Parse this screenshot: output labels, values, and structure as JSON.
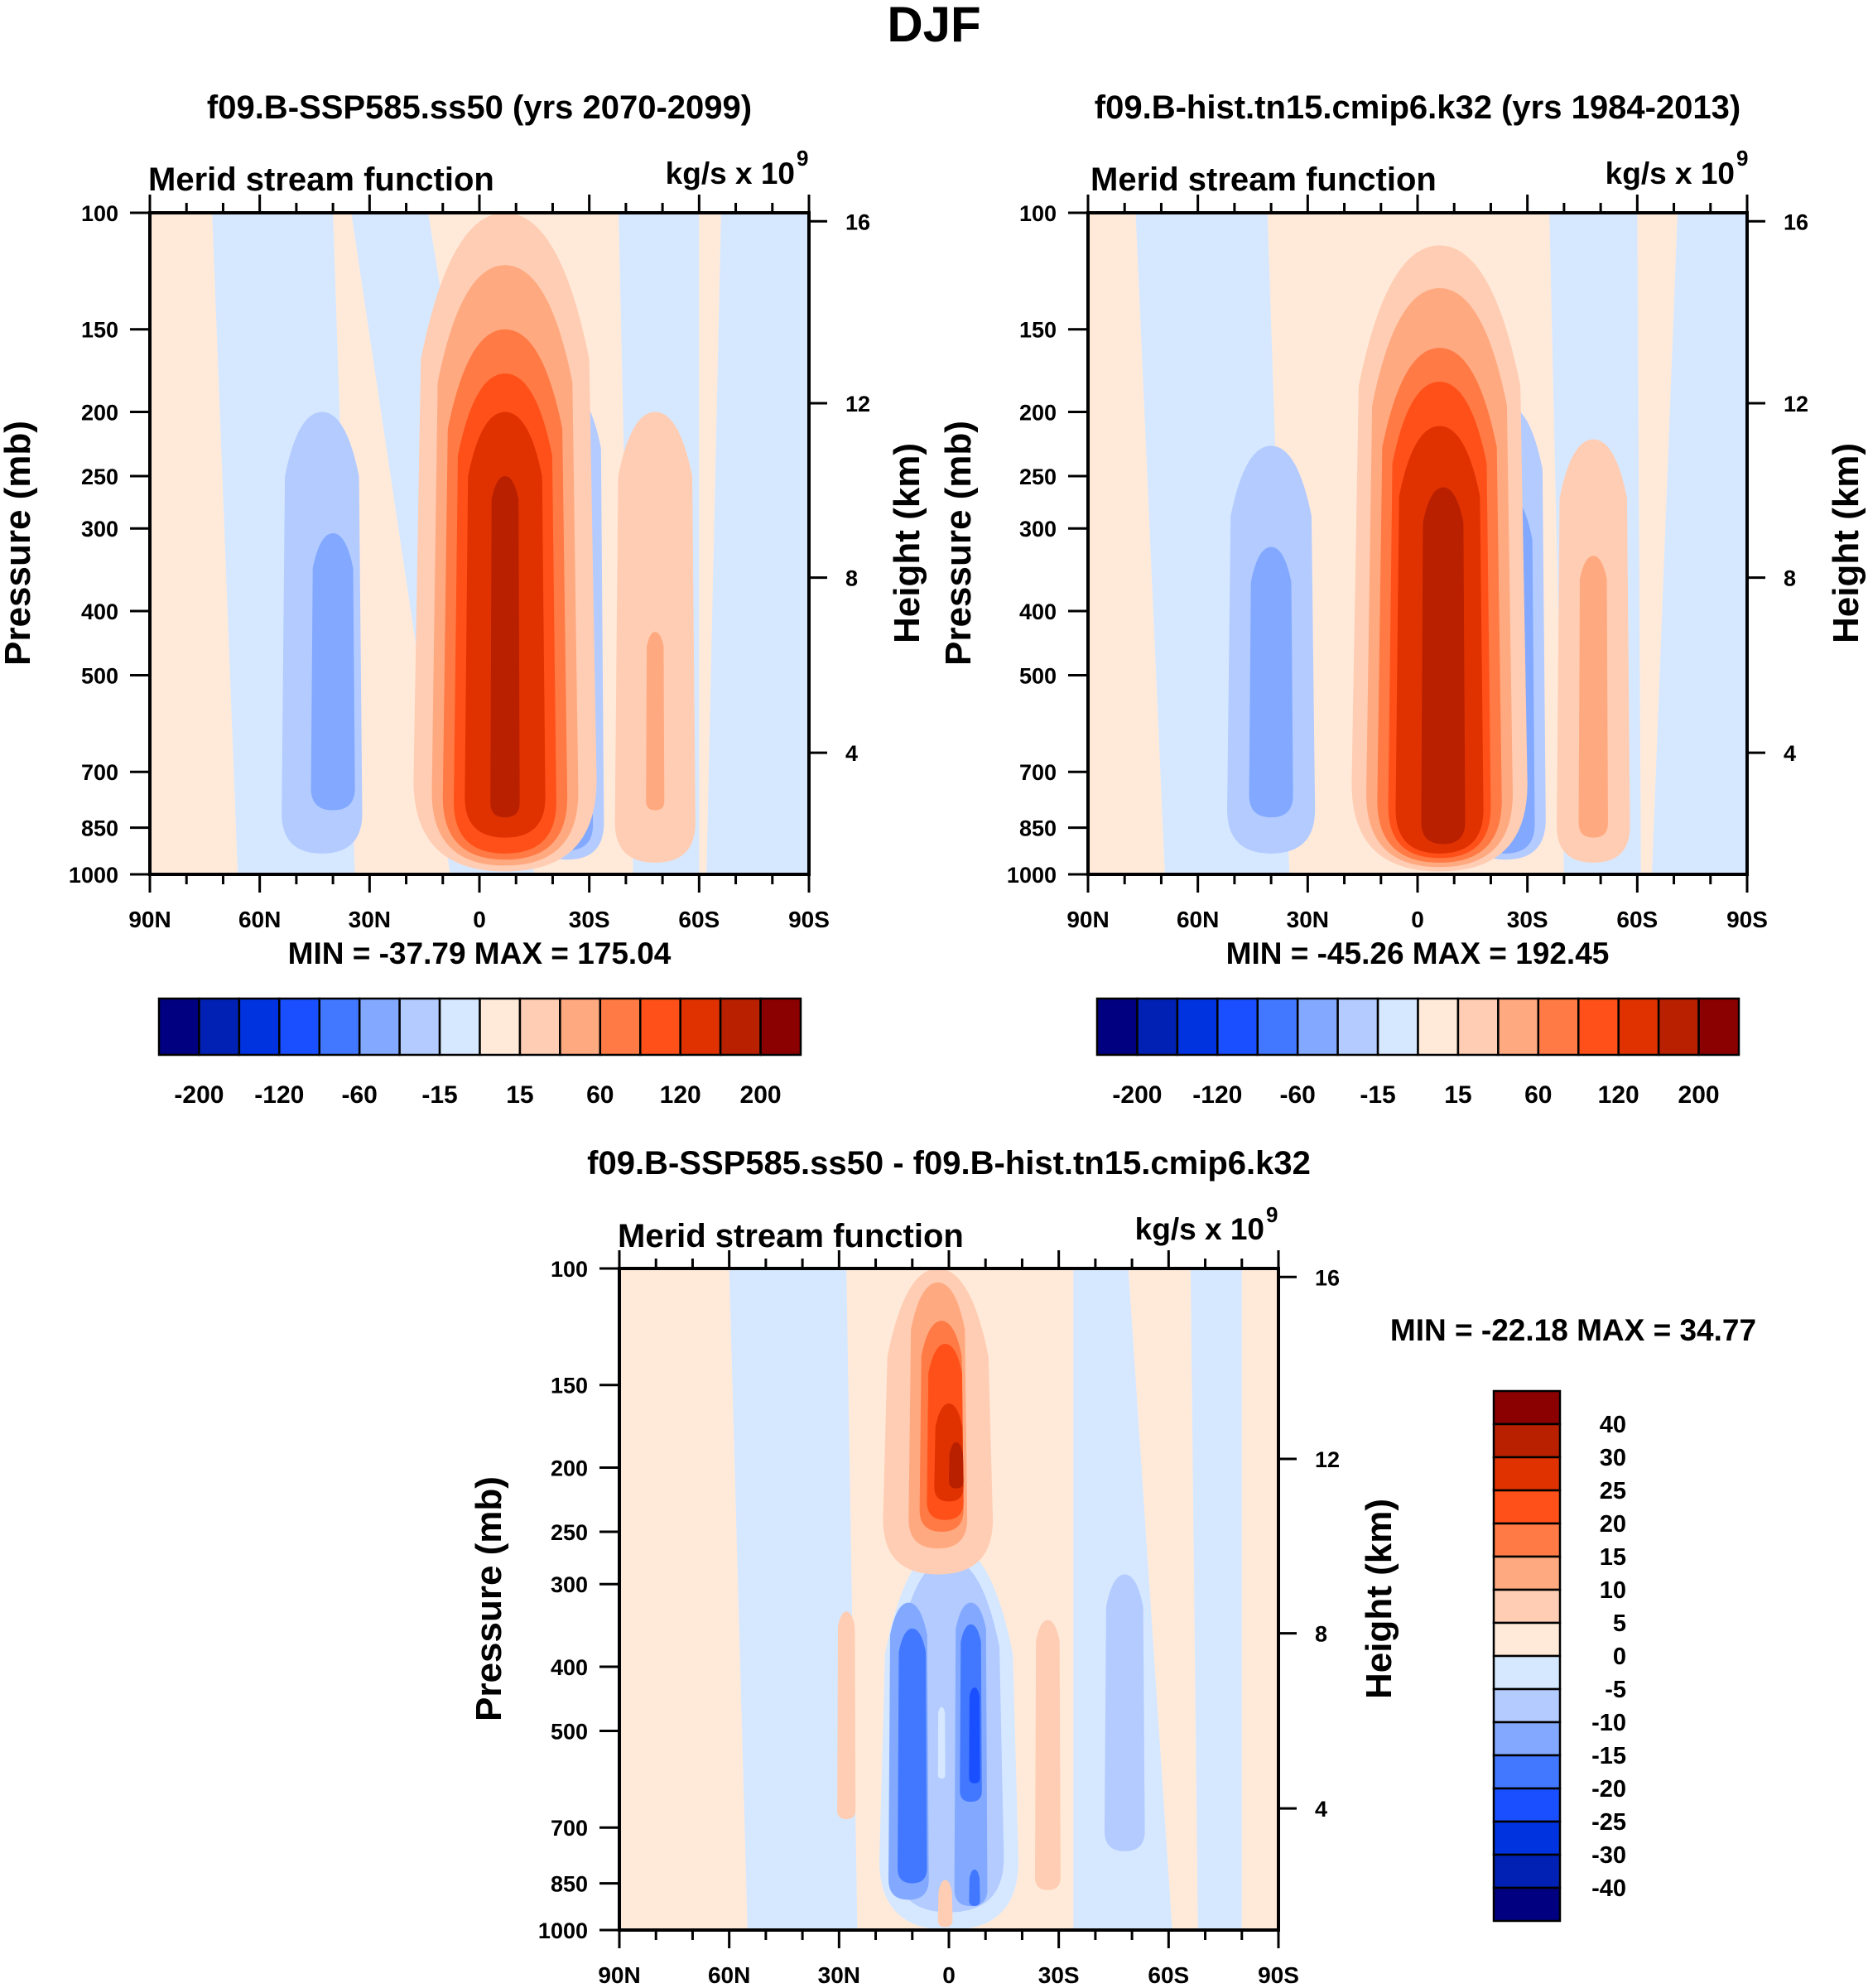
{
  "figure_title": "DJF",
  "colors": {
    "main_levels": [
      "#000080",
      "#0021b3",
      "#0033e0",
      "#1a4fff",
      "#4178ff",
      "#82a9ff",
      "#b3cbff",
      "#d6e8ff",
      "#ffeada",
      "#ffcdb3",
      "#ffa980",
      "#ff7a44",
      "#ff5019",
      "#e03200",
      "#b82000",
      "#8b0000"
    ],
    "diff_levels": [
      "#000080",
      "#0021b3",
      "#0033e0",
      "#1a4fff",
      "#4178ff",
      "#82a9ff",
      "#b3cbff",
      "#d6e8ff",
      "#ffeada",
      "#ffcdb3",
      "#ffa980",
      "#ff7a44",
      "#ff5019",
      "#e03200",
      "#b82000",
      "#8b0000"
    ]
  },
  "chart_data": [
    {
      "id": "panel-ssp585",
      "type": "heatmap",
      "title": "f09.B-SSP585.ss50 (yrs 2070-2099)",
      "left_string": "Merid stream function",
      "right_string_base": "kg/s x 10",
      "right_string_exp": "9",
      "xlabel": "",
      "ylabel": "Pressure (mb)",
      "ylabel_right": "Height (km)",
      "x_ticks": [
        "90N",
        "60N",
        "30N",
        "0",
        "30S",
        "60S",
        "90S"
      ],
      "x_tick_values": [
        90,
        60,
        30,
        0,
        -30,
        -60,
        -90
      ],
      "xlim": [
        90,
        -90
      ],
      "y_ticks": [
        "100",
        "150",
        "200",
        "250",
        "300",
        "400",
        "500",
        "700",
        "850",
        "1000"
      ],
      "y_tick_values": [
        100,
        150,
        200,
        250,
        300,
        400,
        500,
        700,
        850,
        1000
      ],
      "ylim": [
        1000,
        100
      ],
      "y_scale": "log",
      "right_ticks": [
        "16",
        "12",
        "8",
        "4"
      ],
      "right_tick_pressures": [
        103,
        194,
        356,
        655
      ],
      "stats": "MIN = -37.79  MAX = 175.04",
      "min": -37.79,
      "max": 175.04,
      "colorbar": {
        "orientation": "horizontal",
        "levels": [
          -200,
          -160,
          -120,
          -90,
          -60,
          -30,
          -15,
          0,
          15,
          30,
          60,
          90,
          120,
          160,
          200
        ],
        "labels": [
          "-200",
          "-120",
          "-60",
          "-15",
          "15",
          "60",
          "120",
          "200"
        ]
      },
      "features": [
        {
          "level": 8,
          "lat0": 90,
          "lat1": -90,
          "p0": 100,
          "p1": 1000,
          "shape": "rect"
        },
        {
          "level": 7,
          "lat0": 73,
          "lat1": 40,
          "p0": 100,
          "p1": 1000,
          "shape": "band",
          "lat0_bottom": 66,
          "lat1_bottom": 34
        },
        {
          "level": 7,
          "lat0": 35,
          "lat1": 14,
          "p0": 100,
          "p1": 1000,
          "shape": "band",
          "lat0_bottom": 8,
          "lat1_bottom": -15
        },
        {
          "level": 7,
          "lat0": -38,
          "lat1": -60,
          "p0": 100,
          "p1": 1000,
          "shape": "band",
          "lat0_bottom": -42,
          "lat1_bottom": -60
        },
        {
          "level": 7,
          "lat0": -66,
          "lat1": -90,
          "p0": 100,
          "p1": 1000,
          "shape": "band",
          "lat0_bottom": -62,
          "lat1_bottom": -90
        },
        {
          "level": 6,
          "lat": 43,
          "halfwidth": 11,
          "p_top": 200,
          "p_bot": 930
        },
        {
          "level": 5,
          "lat": 40,
          "halfwidth": 6,
          "p_top": 305,
          "p_bot": 800
        },
        {
          "level": 6,
          "lat": -24,
          "halfwidth": 10,
          "p_top": 185,
          "p_bot": 950
        },
        {
          "level": 5,
          "lat": -24,
          "halfwidth": 7,
          "p_top": 280,
          "p_bot": 920
        },
        {
          "level": 9,
          "lat": -48,
          "halfwidth": 11,
          "p_top": 200,
          "p_bot": 960
        },
        {
          "level": 10,
          "lat": -48,
          "halfwidth": 2.5,
          "p_top": 430,
          "p_bot": 800
        },
        {
          "level": 9,
          "lat": -7,
          "halfwidth": 25,
          "p_top": 100,
          "p_bot": 990
        },
        {
          "level": 10,
          "lat": -7,
          "halfwidth": 20,
          "p_top": 120,
          "p_bot": 970
        },
        {
          "level": 11,
          "lat": -7,
          "halfwidth": 17,
          "p_top": 150,
          "p_bot": 950
        },
        {
          "level": 12,
          "lat": -7,
          "halfwidth": 14,
          "p_top": 175,
          "p_bot": 930
        },
        {
          "level": 13,
          "lat": -7,
          "halfwidth": 11,
          "p_top": 200,
          "p_bot": 880
        },
        {
          "level": 14,
          "lat": -7,
          "halfwidth": 4,
          "p_top": 250,
          "p_bot": 820
        }
      ]
    },
    {
      "id": "panel-hist",
      "type": "heatmap",
      "title": "f09.B-hist.tn15.cmip6.k32 (yrs 1984-2013)",
      "left_string": "Merid stream function",
      "right_string_base": "kg/s x 10",
      "right_string_exp": "9",
      "xlabel": "",
      "ylabel": "Pressure (mb)",
      "ylabel_right": "Height (km)",
      "x_ticks": [
        "90N",
        "60N",
        "30N",
        "0",
        "30S",
        "60S",
        "90S"
      ],
      "x_tick_values": [
        90,
        60,
        30,
        0,
        -30,
        -60,
        -90
      ],
      "xlim": [
        90,
        -90
      ],
      "y_ticks": [
        "100",
        "150",
        "200",
        "250",
        "300",
        "400",
        "500",
        "700",
        "850",
        "1000"
      ],
      "y_tick_values": [
        100,
        150,
        200,
        250,
        300,
        400,
        500,
        700,
        850,
        1000
      ],
      "ylim": [
        1000,
        100
      ],
      "y_scale": "log",
      "right_ticks": [
        "16",
        "12",
        "8",
        "4"
      ],
      "right_tick_pressures": [
        103,
        194,
        356,
        655
      ],
      "stats": "MIN = -45.26  MAX = 192.45",
      "min": -45.26,
      "max": 192.45,
      "colorbar": {
        "orientation": "horizontal",
        "levels": [
          -200,
          -160,
          -120,
          -90,
          -60,
          -30,
          -15,
          0,
          15,
          30,
          60,
          90,
          120,
          160,
          200
        ],
        "labels": [
          "-200",
          "-120",
          "-60",
          "-15",
          "15",
          "60",
          "120",
          "200"
        ]
      },
      "features": [
        {
          "level": 8,
          "lat0": 90,
          "lat1": -90,
          "p0": 100,
          "p1": 1000,
          "shape": "rect"
        },
        {
          "level": 7,
          "lat0": 77,
          "lat1": 41,
          "p0": 100,
          "p1": 1000,
          "shape": "band",
          "lat0_bottom": 69,
          "lat1_bottom": 35
        },
        {
          "level": 7,
          "lat0": -36,
          "lat1": -60,
          "p0": 100,
          "p1": 1000,
          "shape": "band",
          "lat0_bottom": -40,
          "lat1_bottom": -61
        },
        {
          "level": 7,
          "lat0": -71,
          "lat1": -90,
          "p0": 100,
          "p1": 1000,
          "shape": "band",
          "lat0_bottom": -64,
          "lat1_bottom": -90
        },
        {
          "level": 6,
          "lat": 40,
          "halfwidth": 12,
          "p_top": 225,
          "p_bot": 930
        },
        {
          "level": 5,
          "lat": 40,
          "halfwidth": 6,
          "p_top": 320,
          "p_bot": 820
        },
        {
          "level": 6,
          "lat": -24,
          "halfwidth": 11,
          "p_top": 195,
          "p_bot": 950
        },
        {
          "level": 5,
          "lat": -24,
          "halfwidth": 8,
          "p_top": 265,
          "p_bot": 930
        },
        {
          "level": 9,
          "lat": -48,
          "halfwidth": 10,
          "p_top": 220,
          "p_bot": 960
        },
        {
          "level": 10,
          "lat": -48,
          "halfwidth": 4,
          "p_top": 330,
          "p_bot": 880
        },
        {
          "level": 9,
          "lat": -6,
          "halfwidth": 24,
          "p_top": 112,
          "p_bot": 990
        },
        {
          "level": 10,
          "lat": -6,
          "halfwidth": 20,
          "p_top": 130,
          "p_bot": 975
        },
        {
          "level": 11,
          "lat": -6,
          "halfwidth": 17,
          "p_top": 160,
          "p_bot": 960
        },
        {
          "level": 12,
          "lat": -6,
          "halfwidth": 14,
          "p_top": 180,
          "p_bot": 945
        },
        {
          "level": 13,
          "lat": -6,
          "halfwidth": 12,
          "p_top": 210,
          "p_bot": 930
        },
        {
          "level": 14,
          "lat": -7,
          "halfwidth": 6,
          "p_top": 260,
          "p_bot": 900
        }
      ]
    },
    {
      "id": "panel-diff",
      "type": "heatmap",
      "title": "f09.B-SSP585.ss50 - f09.B-hist.tn15.cmip6.k32",
      "left_string": "Merid stream function",
      "right_string_base": "kg/s x 10",
      "right_string_exp": "9",
      "xlabel": "",
      "ylabel": "Pressure (mb)",
      "ylabel_right": "Height (km)",
      "x_ticks": [
        "90N",
        "60N",
        "30N",
        "0",
        "30S",
        "60S",
        "90S"
      ],
      "x_tick_values": [
        90,
        60,
        30,
        0,
        -30,
        -60,
        -90
      ],
      "xlim": [
        90,
        -90
      ],
      "y_ticks": [
        "100",
        "150",
        "200",
        "250",
        "300",
        "400",
        "500",
        "700",
        "850",
        "1000"
      ],
      "y_tick_values": [
        100,
        150,
        200,
        250,
        300,
        400,
        500,
        700,
        850,
        1000
      ],
      "ylim": [
        1000,
        100
      ],
      "y_scale": "log",
      "right_ticks": [
        "16",
        "12",
        "8",
        "4"
      ],
      "right_tick_pressures": [
        103,
        194,
        356,
        655
      ],
      "stats": "MIN = -22.18  MAX =  34.77",
      "min": -22.18,
      "max": 34.77,
      "colorbar": {
        "orientation": "vertical",
        "levels": [
          -40,
          -30,
          -25,
          -20,
          -15,
          -10,
          -5,
          0,
          5,
          10,
          15,
          20,
          25,
          30,
          40
        ],
        "labels": [
          "40",
          "30",
          "25",
          "20",
          "15",
          "10",
          "5",
          "0",
          "-5",
          "-10",
          "-15",
          "-20",
          "-25",
          "-30",
          "-40"
        ]
      },
      "features": [
        {
          "level": 8,
          "lat0": 90,
          "lat1": -90,
          "p0": 100,
          "p1": 1000,
          "shape": "rect"
        },
        {
          "level": 7,
          "lat0": 60,
          "lat1": 28,
          "p0": 100,
          "p1": 1000,
          "shape": "band",
          "lat0_bottom": 55,
          "lat1_bottom": 25
        },
        {
          "level": 7,
          "lat0": -34,
          "lat1": -49,
          "p0": 100,
          "p1": 1000,
          "shape": "band",
          "lat0_bottom": -34,
          "lat1_bottom": -61
        },
        {
          "level": 7,
          "lat0": -66,
          "lat1": -80,
          "p0": 100,
          "p1": 1000,
          "shape": "band",
          "lat0_bottom": -68,
          "lat1_bottom": -80
        },
        {
          "level": 7,
          "lat": 0,
          "halfwidth": 19,
          "p_top": 260,
          "p_bot": 1000
        },
        {
          "level": 9,
          "lat": 28,
          "halfwidth": 2.5,
          "p_top": 330,
          "p_bot": 680
        },
        {
          "level": 9,
          "lat": -27,
          "halfwidth": 3.5,
          "p_top": 340,
          "p_bot": 870
        },
        {
          "level": 6,
          "lat": -48,
          "halfwidth": 5.5,
          "p_top": 290,
          "p_bot": 760
        },
        {
          "level": 6,
          "lat": 0,
          "halfwidth": 15,
          "p_top": 275,
          "p_bot": 940
        },
        {
          "level": 5,
          "lat": 11,
          "halfwidth": 5.5,
          "p_top": 320,
          "p_bot": 900
        },
        {
          "level": 5,
          "lat": -6,
          "halfwidth": 4.5,
          "p_top": 320,
          "p_bot": 920
        },
        {
          "level": 4,
          "lat": 10,
          "halfwidth": 4,
          "p_top": 350,
          "p_bot": 850
        },
        {
          "level": 4,
          "lat": -6,
          "halfwidth": 3,
          "p_top": 345,
          "p_bot": 640
        },
        {
          "level": 3,
          "lat": -7,
          "halfwidth": 1.5,
          "p_top": 430,
          "p_bot": 600
        },
        {
          "level": 4,
          "lat": -7,
          "halfwidth": 1.5,
          "p_top": 810,
          "p_bot": 920
        },
        {
          "level": 7,
          "lat": 2,
          "halfwidth": 1,
          "p_top": 460,
          "p_bot": 590
        },
        {
          "level": 9,
          "lat": 1,
          "halfwidth": 2,
          "p_top": 840,
          "p_bot": 990
        },
        {
          "level": 9,
          "lat": 3,
          "halfwidth": 15,
          "p_top": 100,
          "p_bot": 290
        },
        {
          "level": 10,
          "lat": 3,
          "halfwidth": 8,
          "p_top": 105,
          "p_bot": 265
        },
        {
          "level": 11,
          "lat": 2,
          "halfwidth": 6,
          "p_top": 120,
          "p_bot": 250
        },
        {
          "level": 12,
          "lat": 1,
          "halfwidth": 5,
          "p_top": 130,
          "p_bot": 240
        },
        {
          "level": 13,
          "lat": 0,
          "halfwidth": 4,
          "p_top": 160,
          "p_bot": 225
        },
        {
          "level": 14,
          "lat": -2,
          "halfwidth": 2,
          "p_top": 183,
          "p_bot": 215
        }
      ]
    }
  ]
}
